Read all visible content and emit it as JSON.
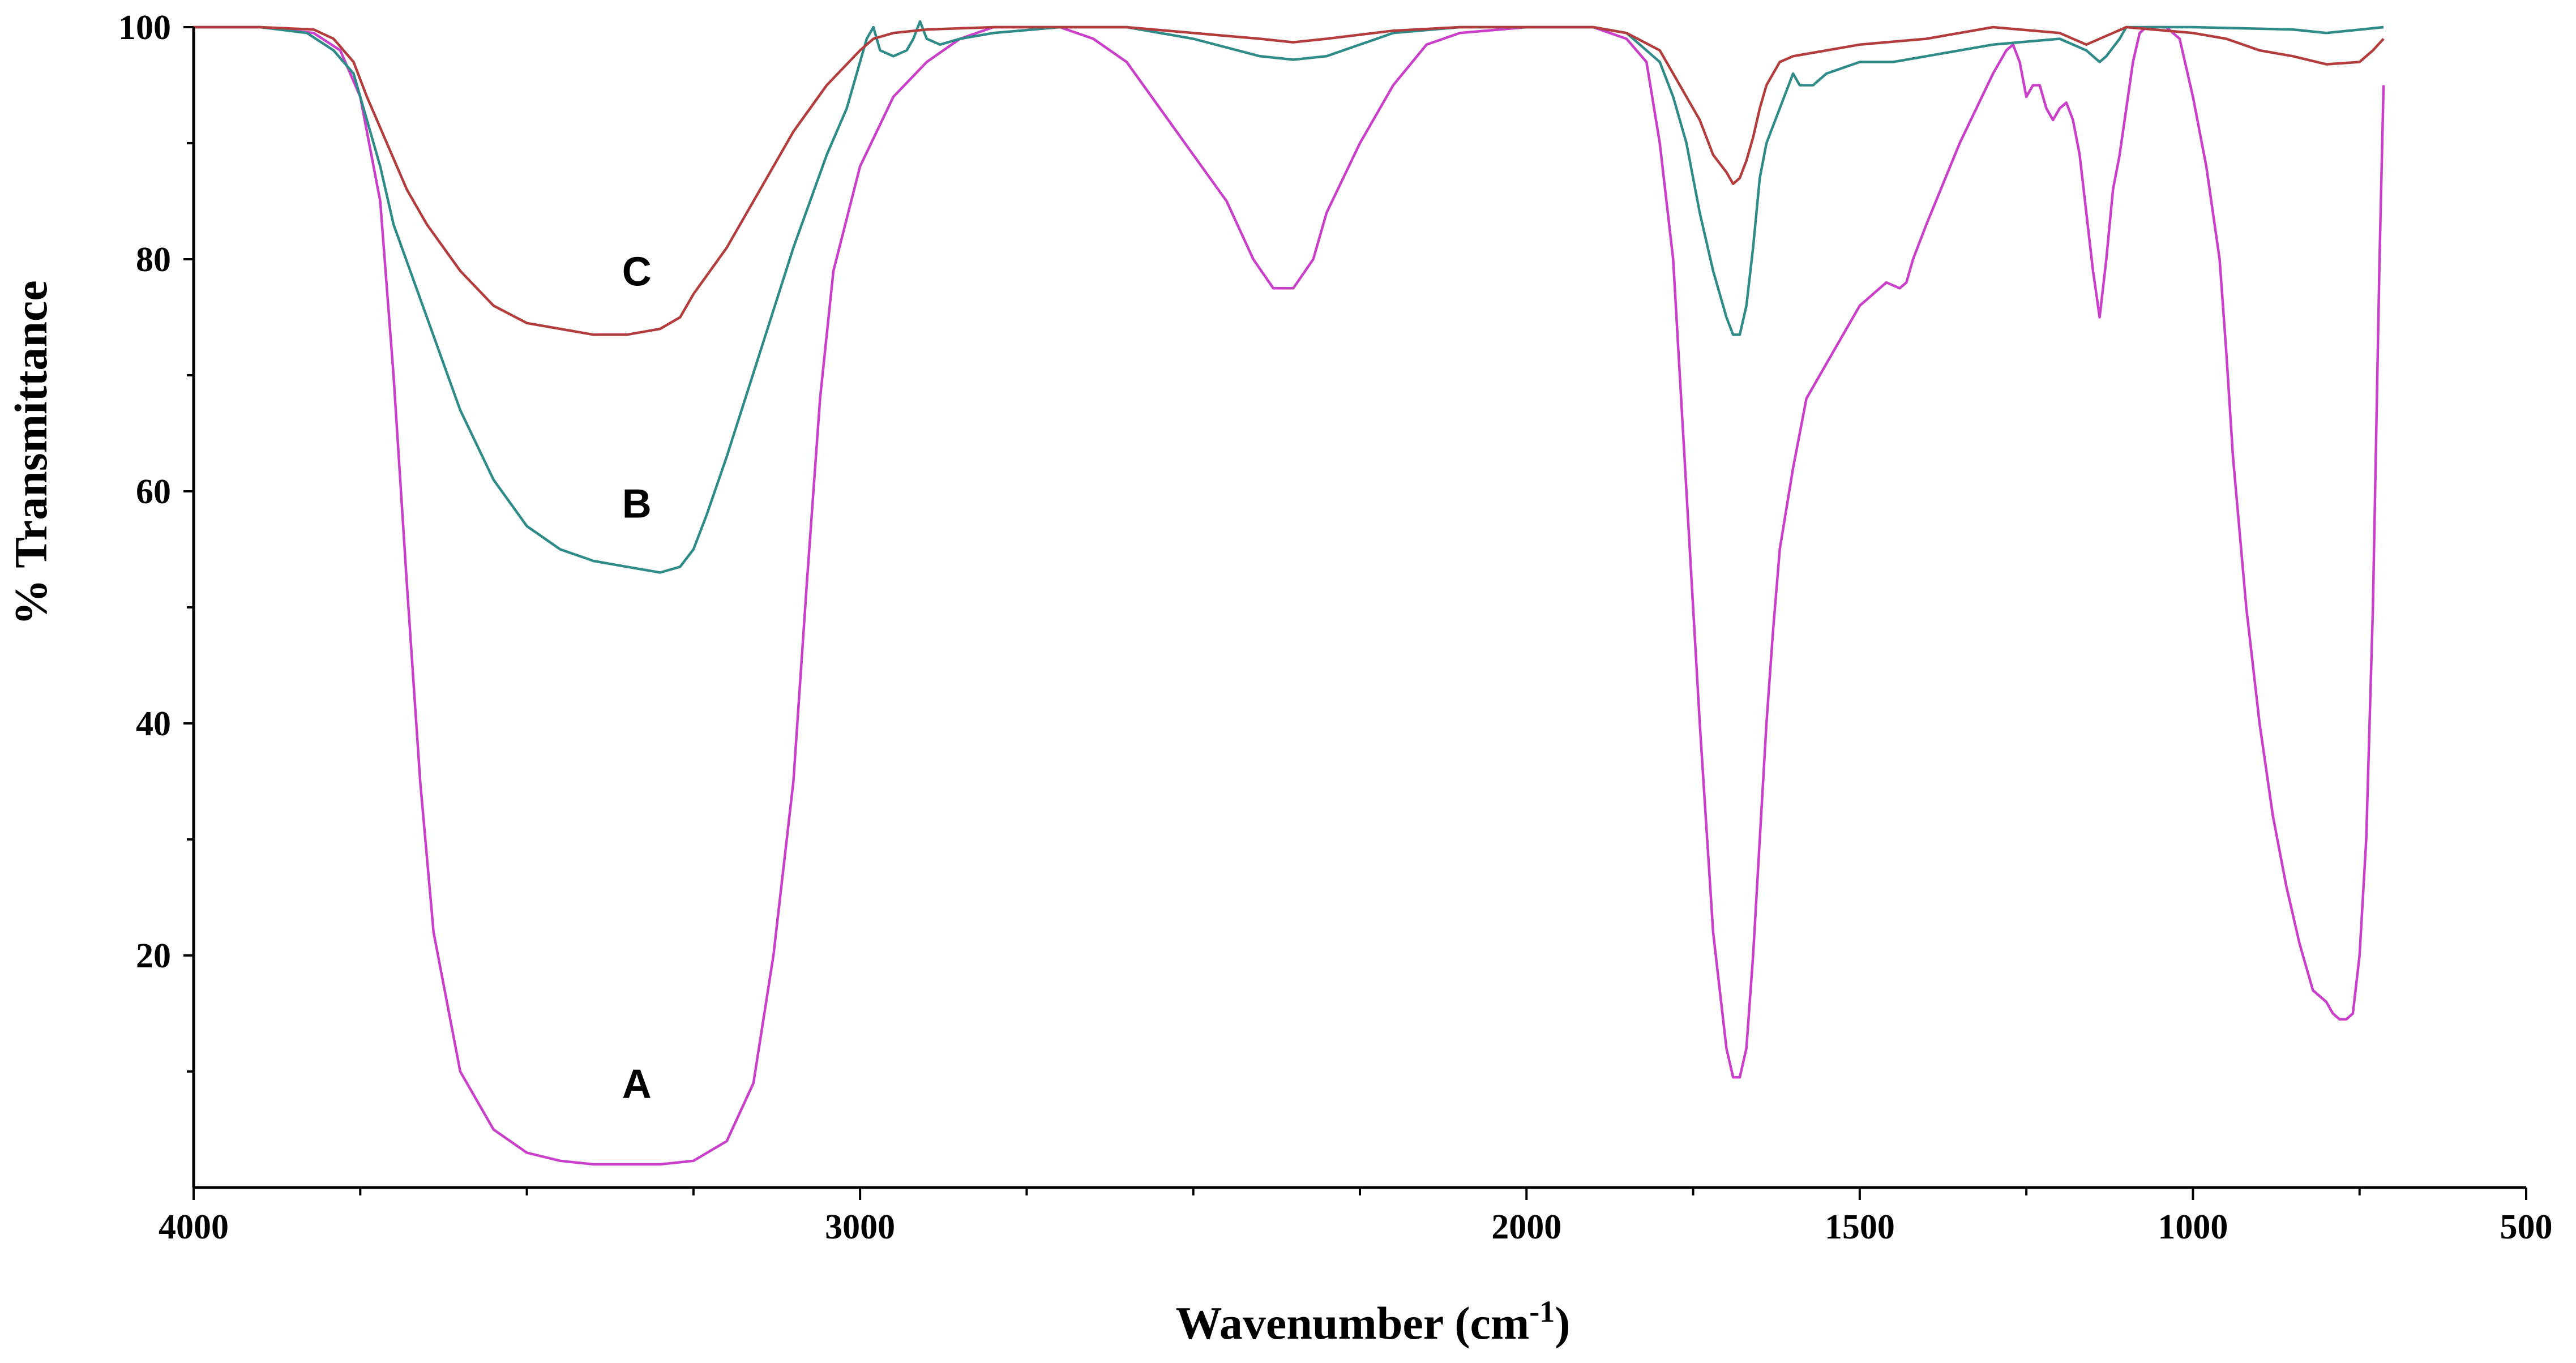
{
  "chart_data": {
    "type": "line",
    "xlabel": "Wavenumber (cm",
    "xlabel_sup": "-1",
    "xlabel_close": ")",
    "ylabel": "% Transmittance",
    "xlim": [
      4000,
      500
    ],
    "ylim": [
      0,
      100
    ],
    "x_ticks": [
      4000,
      3000,
      2000,
      1500,
      1000,
      500
    ],
    "y_ticks": [
      20,
      40,
      60,
      80,
      100
    ],
    "grid": false,
    "legend": "none",
    "series": [
      {
        "name": "A",
        "color": "#c93fc9",
        "label_at": [
          3335,
          9
        ],
        "points": [
          [
            4000,
            100
          ],
          [
            3900,
            100
          ],
          [
            3820,
            99.5
          ],
          [
            3780,
            98
          ],
          [
            3750,
            94
          ],
          [
            3720,
            85
          ],
          [
            3700,
            70
          ],
          [
            3680,
            52
          ],
          [
            3660,
            35
          ],
          [
            3640,
            22
          ],
          [
            3600,
            10
          ],
          [
            3550,
            5
          ],
          [
            3500,
            3
          ],
          [
            3450,
            2.3
          ],
          [
            3400,
            2
          ],
          [
            3300,
            2
          ],
          [
            3250,
            2.3
          ],
          [
            3200,
            4
          ],
          [
            3160,
            9
          ],
          [
            3130,
            20
          ],
          [
            3100,
            35
          ],
          [
            3080,
            52
          ],
          [
            3060,
            68
          ],
          [
            3040,
            79
          ],
          [
            3000,
            88
          ],
          [
            2950,
            94
          ],
          [
            2900,
            97
          ],
          [
            2850,
            99
          ],
          [
            2800,
            100
          ],
          [
            2700,
            100
          ],
          [
            2650,
            99
          ],
          [
            2600,
            97
          ],
          [
            2550,
            93
          ],
          [
            2500,
            89
          ],
          [
            2450,
            85
          ],
          [
            2410,
            80
          ],
          [
            2380,
            77.5
          ],
          [
            2350,
            77.5
          ],
          [
            2320,
            80
          ],
          [
            2300,
            84
          ],
          [
            2250,
            90
          ],
          [
            2200,
            95
          ],
          [
            2150,
            98.5
          ],
          [
            2100,
            99.5
          ],
          [
            2000,
            100
          ],
          [
            1900,
            100
          ],
          [
            1850,
            99
          ],
          [
            1820,
            97
          ],
          [
            1800,
            90
          ],
          [
            1780,
            80
          ],
          [
            1760,
            60
          ],
          [
            1740,
            40
          ],
          [
            1720,
            22
          ],
          [
            1700,
            12
          ],
          [
            1690,
            9.5
          ],
          [
            1680,
            9.5
          ],
          [
            1670,
            12
          ],
          [
            1660,
            20
          ],
          [
            1650,
            30
          ],
          [
            1640,
            40
          ],
          [
            1630,
            48
          ],
          [
            1620,
            55
          ],
          [
            1600,
            62
          ],
          [
            1580,
            68
          ],
          [
            1550,
            71
          ],
          [
            1520,
            74
          ],
          [
            1500,
            76
          ],
          [
            1480,
            77
          ],
          [
            1460,
            78
          ],
          [
            1440,
            77.5
          ],
          [
            1430,
            78
          ],
          [
            1420,
            80
          ],
          [
            1400,
            83
          ],
          [
            1350,
            90
          ],
          [
            1300,
            96
          ],
          [
            1280,
            98
          ],
          [
            1270,
            98.5
          ],
          [
            1260,
            97
          ],
          [
            1250,
            94
          ],
          [
            1240,
            95
          ],
          [
            1230,
            95
          ],
          [
            1220,
            93
          ],
          [
            1210,
            92
          ],
          [
            1200,
            93
          ],
          [
            1190,
            93.5
          ],
          [
            1180,
            92
          ],
          [
            1170,
            89
          ],
          [
            1160,
            84
          ],
          [
            1150,
            79
          ],
          [
            1140,
            75
          ],
          [
            1130,
            80
          ],
          [
            1120,
            86
          ],
          [
            1110,
            89
          ],
          [
            1100,
            93
          ],
          [
            1090,
            97
          ],
          [
            1080,
            99.5
          ],
          [
            1070,
            100
          ],
          [
            1040,
            100
          ],
          [
            1020,
            99
          ],
          [
            1000,
            94
          ],
          [
            980,
            88
          ],
          [
            960,
            80
          ],
          [
            950,
            72
          ],
          [
            940,
            63
          ],
          [
            920,
            50
          ],
          [
            900,
            40
          ],
          [
            880,
            32
          ],
          [
            860,
            26
          ],
          [
            840,
            21
          ],
          [
            820,
            17
          ],
          [
            800,
            16
          ],
          [
            790,
            15
          ],
          [
            780,
            14.5
          ],
          [
            770,
            14.5
          ],
          [
            760,
            15
          ],
          [
            750,
            20
          ],
          [
            740,
            30
          ],
          [
            730,
            50
          ],
          [
            720,
            80
          ],
          [
            714,
            95
          ]
        ]
      },
      {
        "name": "B",
        "color": "#2e8b88",
        "label_at": [
          3335,
          59
        ],
        "points": [
          [
            4000,
            100
          ],
          [
            3900,
            100
          ],
          [
            3830,
            99.5
          ],
          [
            3790,
            98
          ],
          [
            3760,
            96
          ],
          [
            3740,
            92
          ],
          [
            3720,
            88
          ],
          [
            3700,
            83
          ],
          [
            3650,
            75
          ],
          [
            3600,
            67
          ],
          [
            3550,
            61
          ],
          [
            3500,
            57
          ],
          [
            3450,
            55
          ],
          [
            3400,
            54
          ],
          [
            3350,
            53.5
          ],
          [
            3300,
            53
          ],
          [
            3270,
            53.5
          ],
          [
            3250,
            55
          ],
          [
            3230,
            58
          ],
          [
            3200,
            63
          ],
          [
            3150,
            72
          ],
          [
            3100,
            81
          ],
          [
            3050,
            89
          ],
          [
            3020,
            93
          ],
          [
            3000,
            97
          ],
          [
            2990,
            99
          ],
          [
            2980,
            100
          ],
          [
            2970,
            98
          ],
          [
            2950,
            97.5
          ],
          [
            2930,
            98
          ],
          [
            2920,
            99
          ],
          [
            2910,
            100.5
          ],
          [
            2900,
            99
          ],
          [
            2880,
            98.5
          ],
          [
            2850,
            99
          ],
          [
            2800,
            99.5
          ],
          [
            2700,
            100
          ],
          [
            2600,
            100
          ],
          [
            2500,
            99
          ],
          [
            2400,
            97.5
          ],
          [
            2350,
            97.2
          ],
          [
            2300,
            97.5
          ],
          [
            2250,
            98.5
          ],
          [
            2200,
            99.5
          ],
          [
            2100,
            100
          ],
          [
            1900,
            100
          ],
          [
            1850,
            99.5
          ],
          [
            1800,
            97
          ],
          [
            1780,
            94
          ],
          [
            1760,
            90
          ],
          [
            1740,
            84
          ],
          [
            1720,
            79
          ],
          [
            1700,
            75
          ],
          [
            1690,
            73.5
          ],
          [
            1680,
            73.5
          ],
          [
            1670,
            76
          ],
          [
            1660,
            81
          ],
          [
            1650,
            87
          ],
          [
            1640,
            90
          ],
          [
            1620,
            93
          ],
          [
            1600,
            96
          ],
          [
            1590,
            95
          ],
          [
            1570,
            95
          ],
          [
            1550,
            96
          ],
          [
            1500,
            97
          ],
          [
            1450,
            97
          ],
          [
            1400,
            97.5
          ],
          [
            1300,
            98.5
          ],
          [
            1200,
            99
          ],
          [
            1160,
            98
          ],
          [
            1150,
            97.5
          ],
          [
            1140,
            97
          ],
          [
            1130,
            97.5
          ],
          [
            1110,
            99
          ],
          [
            1100,
            100
          ],
          [
            1000,
            100
          ],
          [
            850,
            99.8
          ],
          [
            800,
            99.5
          ],
          [
            714,
            100
          ]
        ]
      },
      {
        "name": "C",
        "color": "#b33d3d",
        "label_at": [
          3335,
          79
        ],
        "points": [
          [
            4000,
            100
          ],
          [
            3900,
            100
          ],
          [
            3820,
            99.8
          ],
          [
            3790,
            99
          ],
          [
            3760,
            97
          ],
          [
            3740,
            94
          ],
          [
            3710,
            90
          ],
          [
            3680,
            86
          ],
          [
            3650,
            83
          ],
          [
            3600,
            79
          ],
          [
            3550,
            76
          ],
          [
            3500,
            74.5
          ],
          [
            3450,
            74
          ],
          [
            3400,
            73.5
          ],
          [
            3350,
            73.5
          ],
          [
            3300,
            74
          ],
          [
            3270,
            75
          ],
          [
            3250,
            77
          ],
          [
            3200,
            81
          ],
          [
            3150,
            86
          ],
          [
            3100,
            91
          ],
          [
            3050,
            95
          ],
          [
            3000,
            98
          ],
          [
            2980,
            99
          ],
          [
            2950,
            99.5
          ],
          [
            2900,
            99.8
          ],
          [
            2800,
            100
          ],
          [
            2600,
            100
          ],
          [
            2500,
            99.5
          ],
          [
            2400,
            99
          ],
          [
            2350,
            98.7
          ],
          [
            2300,
            99
          ],
          [
            2200,
            99.7
          ],
          [
            2100,
            100
          ],
          [
            1900,
            100
          ],
          [
            1850,
            99.5
          ],
          [
            1800,
            98
          ],
          [
            1780,
            96
          ],
          [
            1760,
            94
          ],
          [
            1740,
            92
          ],
          [
            1720,
            89
          ],
          [
            1700,
            87.5
          ],
          [
            1690,
            86.5
          ],
          [
            1680,
            87
          ],
          [
            1670,
            88.5
          ],
          [
            1660,
            90.5
          ],
          [
            1650,
            93
          ],
          [
            1640,
            95
          ],
          [
            1620,
            97
          ],
          [
            1600,
            97.5
          ],
          [
            1500,
            98.5
          ],
          [
            1400,
            99
          ],
          [
            1300,
            100
          ],
          [
            1200,
            99.5
          ],
          [
            1160,
            98.5
          ],
          [
            1140,
            99
          ],
          [
            1100,
            100
          ],
          [
            1000,
            99.5
          ],
          [
            950,
            99
          ],
          [
            900,
            98
          ],
          [
            850,
            97.5
          ],
          [
            800,
            96.8
          ],
          [
            750,
            97
          ],
          [
            730,
            98
          ],
          [
            714,
            99
          ]
        ]
      }
    ]
  }
}
